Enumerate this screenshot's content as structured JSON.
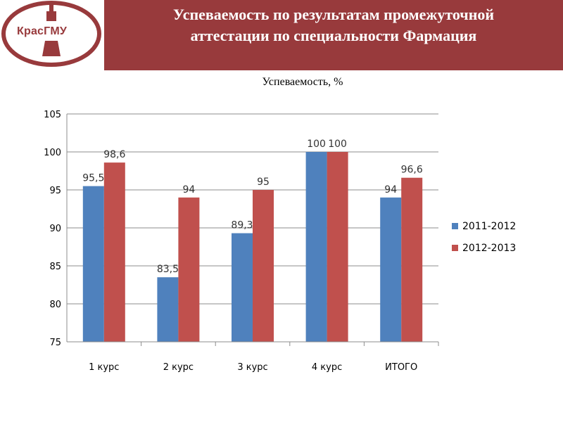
{
  "header": {
    "title_line1": "Успеваемость по результатам  промежуточной",
    "title_line2": "аттестации по специальности Фармация",
    "logo_text": "КрасГМУ",
    "background_color": "#983a3c"
  },
  "chart_data": {
    "type": "bar",
    "title": "Успеваемость, %",
    "categories": [
      "1 курс",
      "2 курс",
      "3 курс",
      "4 курс",
      "ИТОГО"
    ],
    "series": [
      {
        "name": "2011-2012",
        "values": [
          95.5,
          83.5,
          89.3,
          100,
          94
        ],
        "labels": [
          "95,5",
          "83,5",
          "89,3",
          "100",
          "94"
        ],
        "color": "#4f81bd"
      },
      {
        "name": "2012-2013",
        "values": [
          98.6,
          94,
          95,
          100,
          96.6
        ],
        "labels": [
          "98,6",
          "94",
          "95",
          "100",
          "96,6"
        ],
        "color": "#c0504d"
      }
    ],
    "ylim": [
      75,
      105
    ],
    "yticks": [
      75,
      80,
      85,
      90,
      95,
      100,
      105
    ],
    "grid": true,
    "legend_position": "right"
  }
}
